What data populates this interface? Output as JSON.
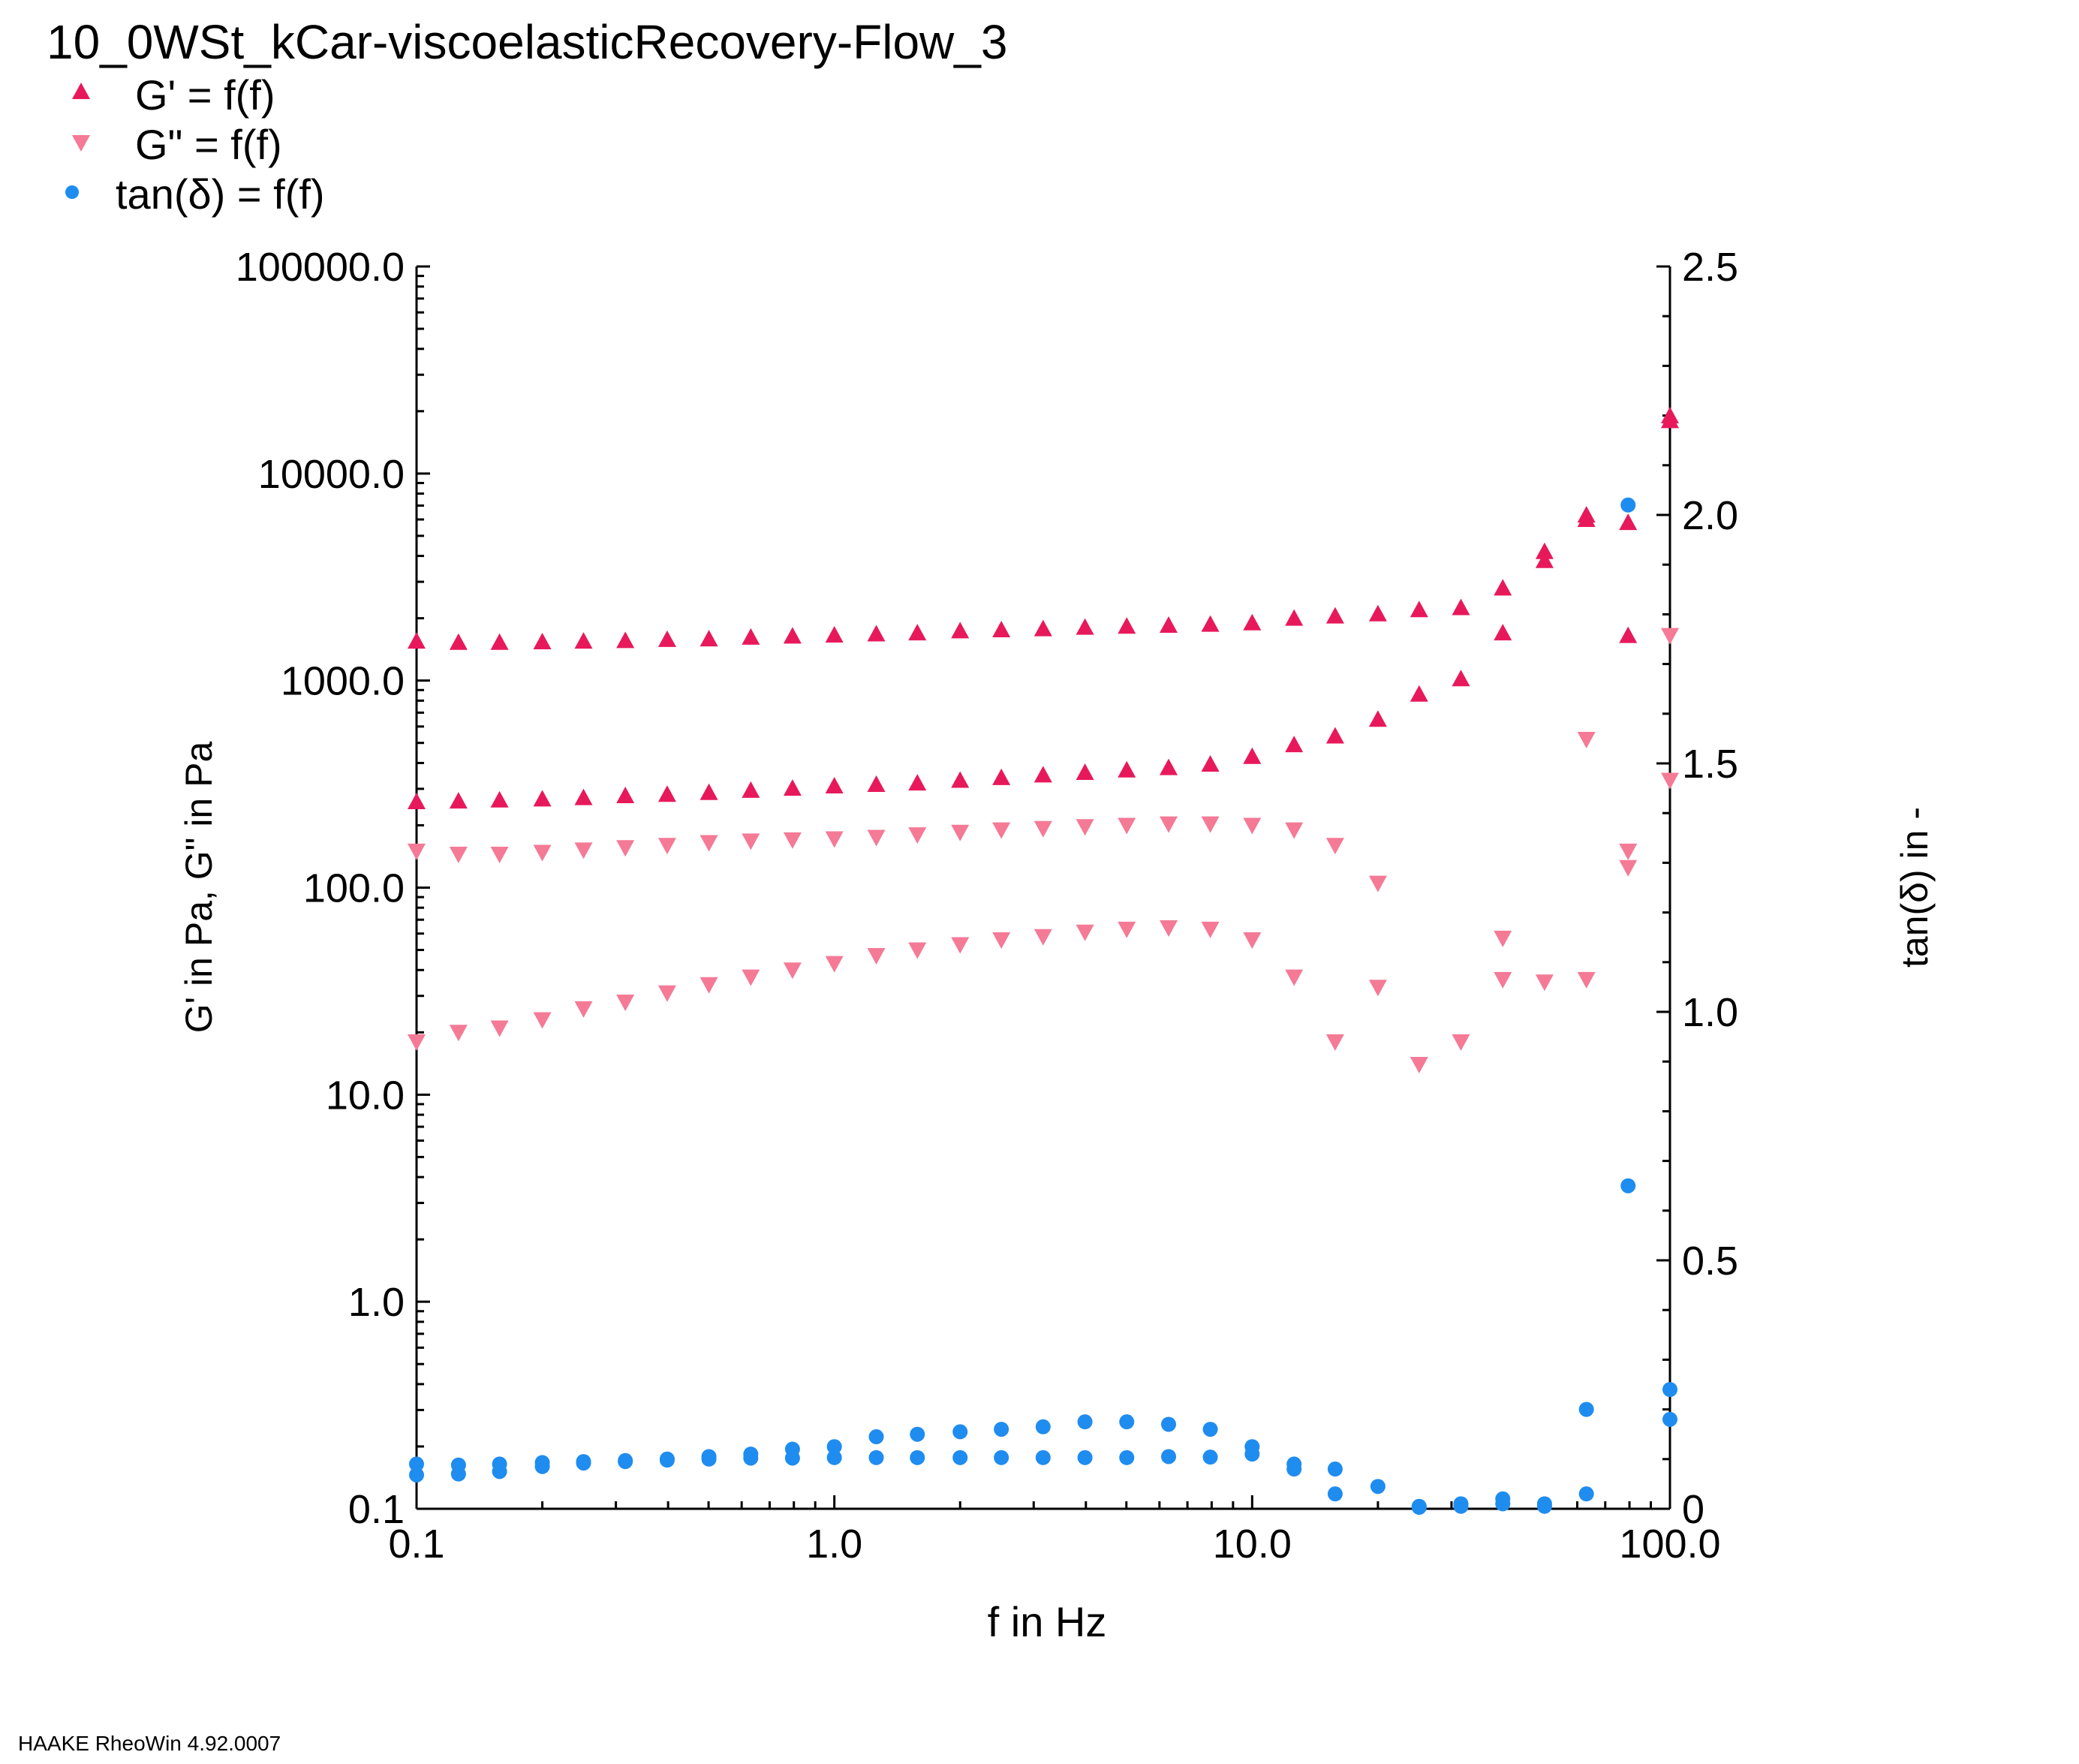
{
  "title": "10_0WSt_kCar-viscoelasticRecovery-Flow_3",
  "footer": "HAAKE RheoWin 4.92.0007",
  "legend": [
    {
      "label": "G' = f(f)",
      "marker": "triangle-up",
      "color": "#e8195b"
    },
    {
      "label": "G\" = f(f)",
      "marker": "triangle-down",
      "color": "#f47a96"
    },
    {
      "label": "tan(δ) = f(f)",
      "marker": "circle",
      "color": "#1f8cf0"
    }
  ],
  "chart_data": {
    "type": "scatter",
    "xlabel": "f in Hz",
    "ylabel_left": "G' in Pa, G\" in Pa",
    "ylabel_right": "tan(δ) in -",
    "x_scale": "log",
    "y_left_scale": "log",
    "y_right_scale": "linear",
    "xlim": [
      0.1,
      100
    ],
    "ylim_left": [
      0.1,
      100000
    ],
    "ylim_right": [
      0,
      2.5
    ],
    "x_ticks": [
      "0.1",
      "1.0",
      "10.0",
      "100.0"
    ],
    "y_left_ticks": [
      "0.1",
      "1.0",
      "10.0",
      "100.0",
      "1000.0",
      "10000.0",
      "100000.0"
    ],
    "y_right_ticks": [
      "0",
      "0.5",
      "1.0",
      "1.5",
      "2.0",
      "2.5"
    ],
    "grid": false,
    "legend_position": "top-left",
    "x": [
      0.1,
      0.126,
      0.158,
      0.2,
      0.251,
      0.316,
      0.398,
      0.501,
      0.631,
      0.794,
      1.0,
      1.26,
      1.58,
      2.0,
      2.51,
      3.16,
      3.98,
      5.01,
      6.31,
      7.94,
      10.0,
      12.6,
      15.8,
      20.0,
      25.1,
      31.6,
      39.8,
      50.1,
      63.1,
      79.4,
      100
    ],
    "series": [
      {
        "name": "G' = f(f)",
        "axis": "left",
        "run": 1,
        "values": [
          1550,
          1530,
          1530,
          1540,
          1550,
          1560,
          1580,
          1590,
          1620,
          1640,
          1660,
          1680,
          1700,
          1740,
          1760,
          1780,
          1810,
          1830,
          1850,
          1870,
          1900,
          2000,
          2050,
          2100,
          2200,
          2250,
          2800,
          3800,
          6000,
          5800,
          19000
        ]
      },
      {
        "name": "G' = f(f)",
        "axis": "left",
        "run": 2,
        "values": [
          260,
          262,
          265,
          268,
          272,
          278,
          282,
          288,
          295,
          302,
          310,
          315,
          320,
          330,
          340,
          350,
          360,
          370,
          380,
          395,
          430,
          490,
          540,
          650,
          860,
          1020,
          1700,
          4200,
          6300,
          1650,
          18000
        ]
      },
      {
        "name": "G\" = f(f)",
        "axis": "left",
        "run": 1,
        "values": [
          150,
          145,
          145,
          148,
          152,
          156,
          160,
          165,
          168,
          170,
          172,
          175,
          180,
          185,
          190,
          193,
          197,
          200,
          203,
          203,
          200,
          190,
          160,
          105,
          null,
          null,
          57,
          null,
          520,
          150,
          330
        ]
      },
      {
        "name": "G\" = f(f)",
        "axis": "left",
        "run": 2,
        "values": [
          18,
          20,
          21,
          23,
          26,
          28,
          31,
          34,
          37,
          40,
          43,
          47,
          50,
          53,
          56,
          58,
          61,
          63,
          64,
          63,
          56,
          37,
          18,
          33,
          14,
          18,
          36,
          35,
          36,
          125,
          1650
        ]
      },
      {
        "name": "tan(δ) = f(f)",
        "axis": "right",
        "run": 1,
        "values": [
          0.09,
          0.088,
          0.09,
          0.093,
          0.095,
          0.097,
          0.1,
          0.105,
          0.11,
          0.12,
          0.125,
          0.145,
          0.15,
          0.155,
          0.16,
          0.165,
          0.175,
          0.175,
          0.17,
          0.16,
          0.125,
          0.09,
          0.08,
          0.045,
          0.005,
          0.01,
          0.02,
          0.01,
          0.2,
          2.02,
          0.24
        ]
      },
      {
        "name": "tan(δ) = f(f)",
        "axis": "right",
        "run": 2,
        "values": [
          0.068,
          0.07,
          0.075,
          0.085,
          0.092,
          0.095,
          0.098,
          0.1,
          0.102,
          0.102,
          0.103,
          0.103,
          0.103,
          0.103,
          0.103,
          0.103,
          0.103,
          0.103,
          0.105,
          0.104,
          0.11,
          0.08,
          0.03,
          null,
          0.003,
          0.005,
          0.01,
          0.005,
          0.03,
          0.65,
          0.18
        ]
      }
    ]
  }
}
